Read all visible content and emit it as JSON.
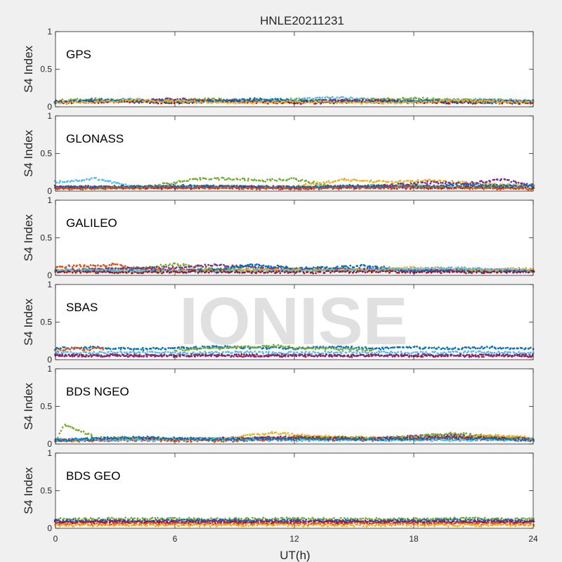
{
  "chart_data": {
    "type": "scatter",
    "title": "HNLE20211231",
    "xlabel": "UT(h)",
    "ylabel": "S4 Index",
    "xlim": [
      0,
      24
    ],
    "ylim": [
      0,
      1
    ],
    "xticks": [
      "0",
      "6",
      "12",
      "18",
      "24"
    ],
    "yticks": [
      "0",
      "0.5",
      "1"
    ],
    "watermark": "IONISE",
    "colors": [
      "#0072BD",
      "#D95319",
      "#EDB120",
      "#7E2F8E",
      "#77AC30",
      "#4DBEEE",
      "#A2142F"
    ],
    "panels": [
      {
        "label": "GPS",
        "series": [
          {
            "color": "#4DBEEE",
            "x": [
              0,
              2,
              4,
              6,
              8,
              10,
              12,
              14,
              16,
              18,
              20,
              22,
              24
            ],
            "y": [
              0.06,
              0.08,
              0.1,
              0.08,
              0.07,
              0.09,
              0.1,
              0.12,
              0.1,
              0.08,
              0.09,
              0.1,
              0.07
            ]
          },
          {
            "color": "#77AC30",
            "x": [
              0,
              2,
              4,
              6,
              8,
              10,
              12,
              14,
              16,
              18,
              20,
              22,
              24
            ],
            "y": [
              0.08,
              0.1,
              0.07,
              0.09,
              0.1,
              0.08,
              0.09,
              0.08,
              0.1,
              0.11,
              0.09,
              0.08,
              0.07
            ]
          },
          {
            "color": "#7E2F8E",
            "x": [
              0,
              2,
              4,
              6,
              8,
              10,
              12,
              14,
              16,
              18,
              20,
              22,
              24
            ],
            "y": [
              0.07,
              0.06,
              0.08,
              0.1,
              0.08,
              0.07,
              0.06,
              0.09,
              0.08,
              0.07,
              0.06,
              0.08,
              0.06
            ]
          },
          {
            "color": "#A2142F",
            "x": [
              0,
              2,
              4,
              6,
              8,
              10,
              12,
              14,
              16,
              18,
              20,
              22,
              24
            ],
            "y": [
              0.05,
              0.07,
              0.06,
              0.05,
              0.08,
              0.06,
              0.05,
              0.06,
              0.07,
              0.06,
              0.05,
              0.06,
              0.05
            ]
          },
          {
            "color": "#0072BD",
            "x": [
              0,
              2,
              4,
              6,
              8,
              10,
              12,
              14,
              16,
              18,
              20,
              22,
              24
            ],
            "y": [
              0.06,
              0.09,
              0.08,
              0.06,
              0.07,
              0.1,
              0.08,
              0.07,
              0.06,
              0.08,
              0.07,
              0.06,
              0.08
            ]
          },
          {
            "color": "#EDB120",
            "x": [
              0,
              2,
              4,
              6,
              8,
              10,
              12,
              14,
              16,
              18,
              20,
              22,
              24
            ],
            "y": [
              0.05,
              0.06,
              0.09,
              0.07,
              0.06,
              0.05,
              0.07,
              0.06,
              0.05,
              0.06,
              0.08,
              0.07,
              0.06
            ]
          }
        ]
      },
      {
        "label": "GLONASS",
        "series": [
          {
            "color": "#4DBEEE",
            "x": [
              0,
              0.5,
              1,
              1.5,
              2,
              4,
              8,
              12,
              16,
              20,
              24
            ],
            "y": [
              0.12,
              0.13,
              0.14,
              0.15,
              0.17,
              0.05,
              0.06,
              0.05,
              0.07,
              0.06,
              0.08
            ]
          },
          {
            "color": "#77AC30",
            "x": [
              0,
              4,
              7.5,
              9,
              10.5,
              12,
              14,
              18,
              20,
              22,
              24
            ],
            "y": [
              0.05,
              0.04,
              0.17,
              0.16,
              0.14,
              0.16,
              0.06,
              0.07,
              0.05,
              0.06,
              0.05
            ]
          },
          {
            "color": "#EDB120",
            "x": [
              0,
              4,
              8,
              12,
              14.5,
              16,
              17,
              18,
              19,
              20,
              24
            ],
            "y": [
              0.04,
              0.05,
              0.05,
              0.06,
              0.15,
              0.13,
              0.12,
              0.13,
              0.14,
              0.12,
              0.06
            ]
          },
          {
            "color": "#7E2F8E",
            "x": [
              0,
              4,
              8,
              12,
              16,
              19,
              20,
              21,
              22.5,
              24
            ],
            "y": [
              0.06,
              0.05,
              0.06,
              0.05,
              0.06,
              0.12,
              0.1,
              0.11,
              0.16,
              0.07
            ]
          },
          {
            "color": "#A2142F",
            "x": [
              0,
              3,
              6,
              9,
              12,
              15,
              18,
              21,
              24
            ],
            "y": [
              0.04,
              0.05,
              0.04,
              0.05,
              0.04,
              0.05,
              0.04,
              0.05,
              0.04
            ]
          },
          {
            "color": "#0072BD",
            "x": [
              0,
              3,
              6,
              9,
              12,
              15,
              18,
              21,
              24
            ],
            "y": [
              0.05,
              0.06,
              0.07,
              0.06,
              0.05,
              0.07,
              0.06,
              0.08,
              0.06
            ]
          },
          {
            "color": "#D95319",
            "x": [
              0,
              3,
              6,
              9,
              12,
              15,
              18,
              21,
              24
            ],
            "y": [
              0.03,
              0.04,
              0.05,
              0.04,
              0.03,
              0.04,
              0.05,
              0.04,
              0.03
            ]
          }
        ]
      },
      {
        "label": "GALILEO",
        "series": [
          {
            "color": "#D95319",
            "x": [
              0,
              1,
              2,
              3,
              4,
              6,
              8,
              10,
              12,
              16,
              20,
              24
            ],
            "y": [
              0.1,
              0.13,
              0.12,
              0.15,
              0.09,
              0.07,
              0.08,
              0.06,
              0.07,
              0.06,
              0.07,
              0.06
            ]
          },
          {
            "color": "#77AC30",
            "x": [
              0,
              2,
              4,
              5,
              6,
              8,
              10,
              12,
              16,
              20,
              24
            ],
            "y": [
              0.07,
              0.08,
              0.09,
              0.12,
              0.15,
              0.08,
              0.09,
              0.07,
              0.08,
              0.07,
              0.06
            ]
          },
          {
            "color": "#7E2F8E",
            "x": [
              0,
              3,
              6,
              8,
              9,
              11,
              13,
              15,
              18,
              20,
              22,
              24
            ],
            "y": [
              0.06,
              0.09,
              0.1,
              0.14,
              0.12,
              0.1,
              0.08,
              0.09,
              0.07,
              0.08,
              0.07,
              0.06
            ]
          },
          {
            "color": "#0072BD",
            "x": [
              0,
              4,
              8,
              10,
              11,
              12,
              14,
              15.5,
              18,
              21,
              24
            ],
            "y": [
              0.05,
              0.06,
              0.07,
              0.15,
              0.12,
              0.09,
              0.1,
              0.13,
              0.06,
              0.05,
              0.05
            ]
          },
          {
            "color": "#EDB120",
            "x": [
              0,
              4,
              8,
              12,
              16,
              18,
              20,
              22,
              23,
              24
            ],
            "y": [
              0.06,
              0.05,
              0.06,
              0.07,
              0.08,
              0.1,
              0.09,
              0.07,
              0.09,
              0.08
            ]
          },
          {
            "color": "#4DBEEE",
            "x": [
              0,
              4,
              8,
              12,
              16,
              19,
              21,
              24
            ],
            "y": [
              0.07,
              0.06,
              0.05,
              0.06,
              0.07,
              0.1,
              0.09,
              0.06
            ]
          },
          {
            "color": "#A2142F",
            "x": [
              0,
              4,
              8,
              12,
              16,
              20,
              24
            ],
            "y": [
              0.05,
              0.04,
              0.05,
              0.04,
              0.05,
              0.04,
              0.05
            ]
          }
        ]
      },
      {
        "label": "SBAS",
        "series": [
          {
            "color": "#0072BD",
            "x": [
              0,
              2,
              4,
              6,
              8,
              10,
              12,
              14,
              16,
              18,
              20,
              22,
              24
            ],
            "y": [
              0.15,
              0.16,
              0.14,
              0.15,
              0.17,
              0.16,
              0.15,
              0.17,
              0.15,
              0.16,
              0.15,
              0.16,
              0.15
            ]
          },
          {
            "color": "#D95319",
            "x": [
              0,
              0.5,
              1,
              1.5,
              2,
              2.5
            ],
            "y": [
              0.12,
              0.14,
              0.16,
              0.13,
              0.15,
              0.14
            ]
          },
          {
            "color": "#77AC30",
            "x": [
              6,
              8,
              10,
              11,
              12,
              13,
              14,
              16
            ],
            "y": [
              0.13,
              0.15,
              0.17,
              0.19,
              0.16,
              0.15,
              0.14,
              0.13
            ]
          },
          {
            "color": "#4DBEEE",
            "x": [
              0,
              3,
              6,
              9,
              12,
              15,
              18,
              21,
              24
            ],
            "y": [
              0.09,
              0.1,
              0.09,
              0.1,
              0.09,
              0.1,
              0.09,
              0.1,
              0.09
            ]
          },
          {
            "color": "#A2142F",
            "x": [
              0,
              3,
              6,
              9,
              12,
              15,
              18,
              21,
              24
            ],
            "y": [
              0.05,
              0.06,
              0.05,
              0.06,
              0.05,
              0.06,
              0.05,
              0.06,
              0.05
            ]
          },
          {
            "color": "#7E2F8E",
            "x": [
              0,
              3,
              6,
              9,
              12,
              15,
              18,
              21,
              24
            ],
            "y": [
              0.06,
              0.05,
              0.06,
              0.05,
              0.06,
              0.05,
              0.06,
              0.05,
              0.06
            ]
          }
        ]
      },
      {
        "label": "BDS NGEO",
        "series": [
          {
            "color": "#7E2F8E",
            "x": [
              0,
              2,
              4,
              6,
              8,
              10,
              12,
              14,
              16,
              18,
              20,
              22,
              24
            ],
            "y": [
              0.05,
              0.06,
              0.08,
              0.06,
              0.07,
              0.08,
              0.1,
              0.08,
              0.07,
              0.1,
              0.12,
              0.09,
              0.07
            ]
          },
          {
            "color": "#77AC30",
            "x": [
              0,
              0.5,
              2,
              4,
              6,
              8,
              10,
              12,
              14,
              16,
              18,
              20,
              22,
              24
            ],
            "y": [
              0.05,
              0.26,
              0.09,
              0.07,
              0.06,
              0.07,
              0.06,
              0.08,
              0.09,
              0.08,
              0.1,
              0.14,
              0.1,
              0.08
            ]
          },
          {
            "color": "#EDB120",
            "x": [
              0,
              4,
              8,
              11,
              12,
              14,
              18,
              22,
              24
            ],
            "y": [
              0.04,
              0.07,
              0.06,
              0.15,
              0.12,
              0.09,
              0.07,
              0.11,
              0.08
            ]
          },
          {
            "color": "#A2142F",
            "x": [
              0,
              4,
              8,
              12,
              16,
              20,
              24
            ],
            "y": [
              0.05,
              0.06,
              0.07,
              0.08,
              0.07,
              0.09,
              0.06
            ]
          },
          {
            "color": "#D95319",
            "x": [
              0,
              4,
              8,
              12,
              16,
              20,
              24
            ],
            "y": [
              0.04,
              0.05,
              0.04,
              0.06,
              0.05,
              0.07,
              0.05
            ]
          },
          {
            "color": "#4DBEEE",
            "x": [
              0,
              4,
              8,
              12,
              16,
              20,
              24
            ],
            "y": [
              0.06,
              0.05,
              0.07,
              0.05,
              0.06,
              0.05,
              0.06
            ]
          },
          {
            "color": "#0072BD",
            "x": [
              0,
              4,
              8,
              12,
              16,
              20,
              24
            ],
            "y": [
              0.05,
              0.09,
              0.06,
              0.07,
              0.06,
              0.08,
              0.05
            ]
          }
        ]
      },
      {
        "label": "BDS GEO",
        "series": [
          {
            "color": "#77AC30",
            "x": [
              0,
              4,
              8,
              12,
              16,
              20,
              24
            ],
            "y": [
              0.12,
              0.13,
              0.12,
              0.13,
              0.12,
              0.13,
              0.12
            ]
          },
          {
            "color": "#0072BD",
            "x": [
              0,
              4,
              8,
              12,
              16,
              20,
              24
            ],
            "y": [
              0.1,
              0.1,
              0.11,
              0.1,
              0.1,
              0.11,
              0.1
            ]
          },
          {
            "color": "#7E2F8E",
            "x": [
              0,
              4,
              8,
              12,
              16,
              20,
              24
            ],
            "y": [
              0.09,
              0.09,
              0.09,
              0.09,
              0.09,
              0.09,
              0.09
            ]
          },
          {
            "color": "#A2142F",
            "x": [
              0,
              4,
              8,
              12,
              16,
              20,
              24
            ],
            "y": [
              0.08,
              0.08,
              0.08,
              0.08,
              0.08,
              0.08,
              0.08
            ]
          },
          {
            "color": "#D95319",
            "x": [
              0,
              4,
              8,
              12,
              16,
              20,
              24
            ],
            "y": [
              0.06,
              0.06,
              0.06,
              0.06,
              0.06,
              0.06,
              0.06
            ]
          },
          {
            "color": "#EDB120",
            "x": [
              0,
              4,
              8,
              12,
              16,
              20,
              24
            ],
            "y": [
              0.04,
              0.04,
              0.04,
              0.04,
              0.04,
              0.04,
              0.04
            ]
          }
        ]
      }
    ]
  }
}
